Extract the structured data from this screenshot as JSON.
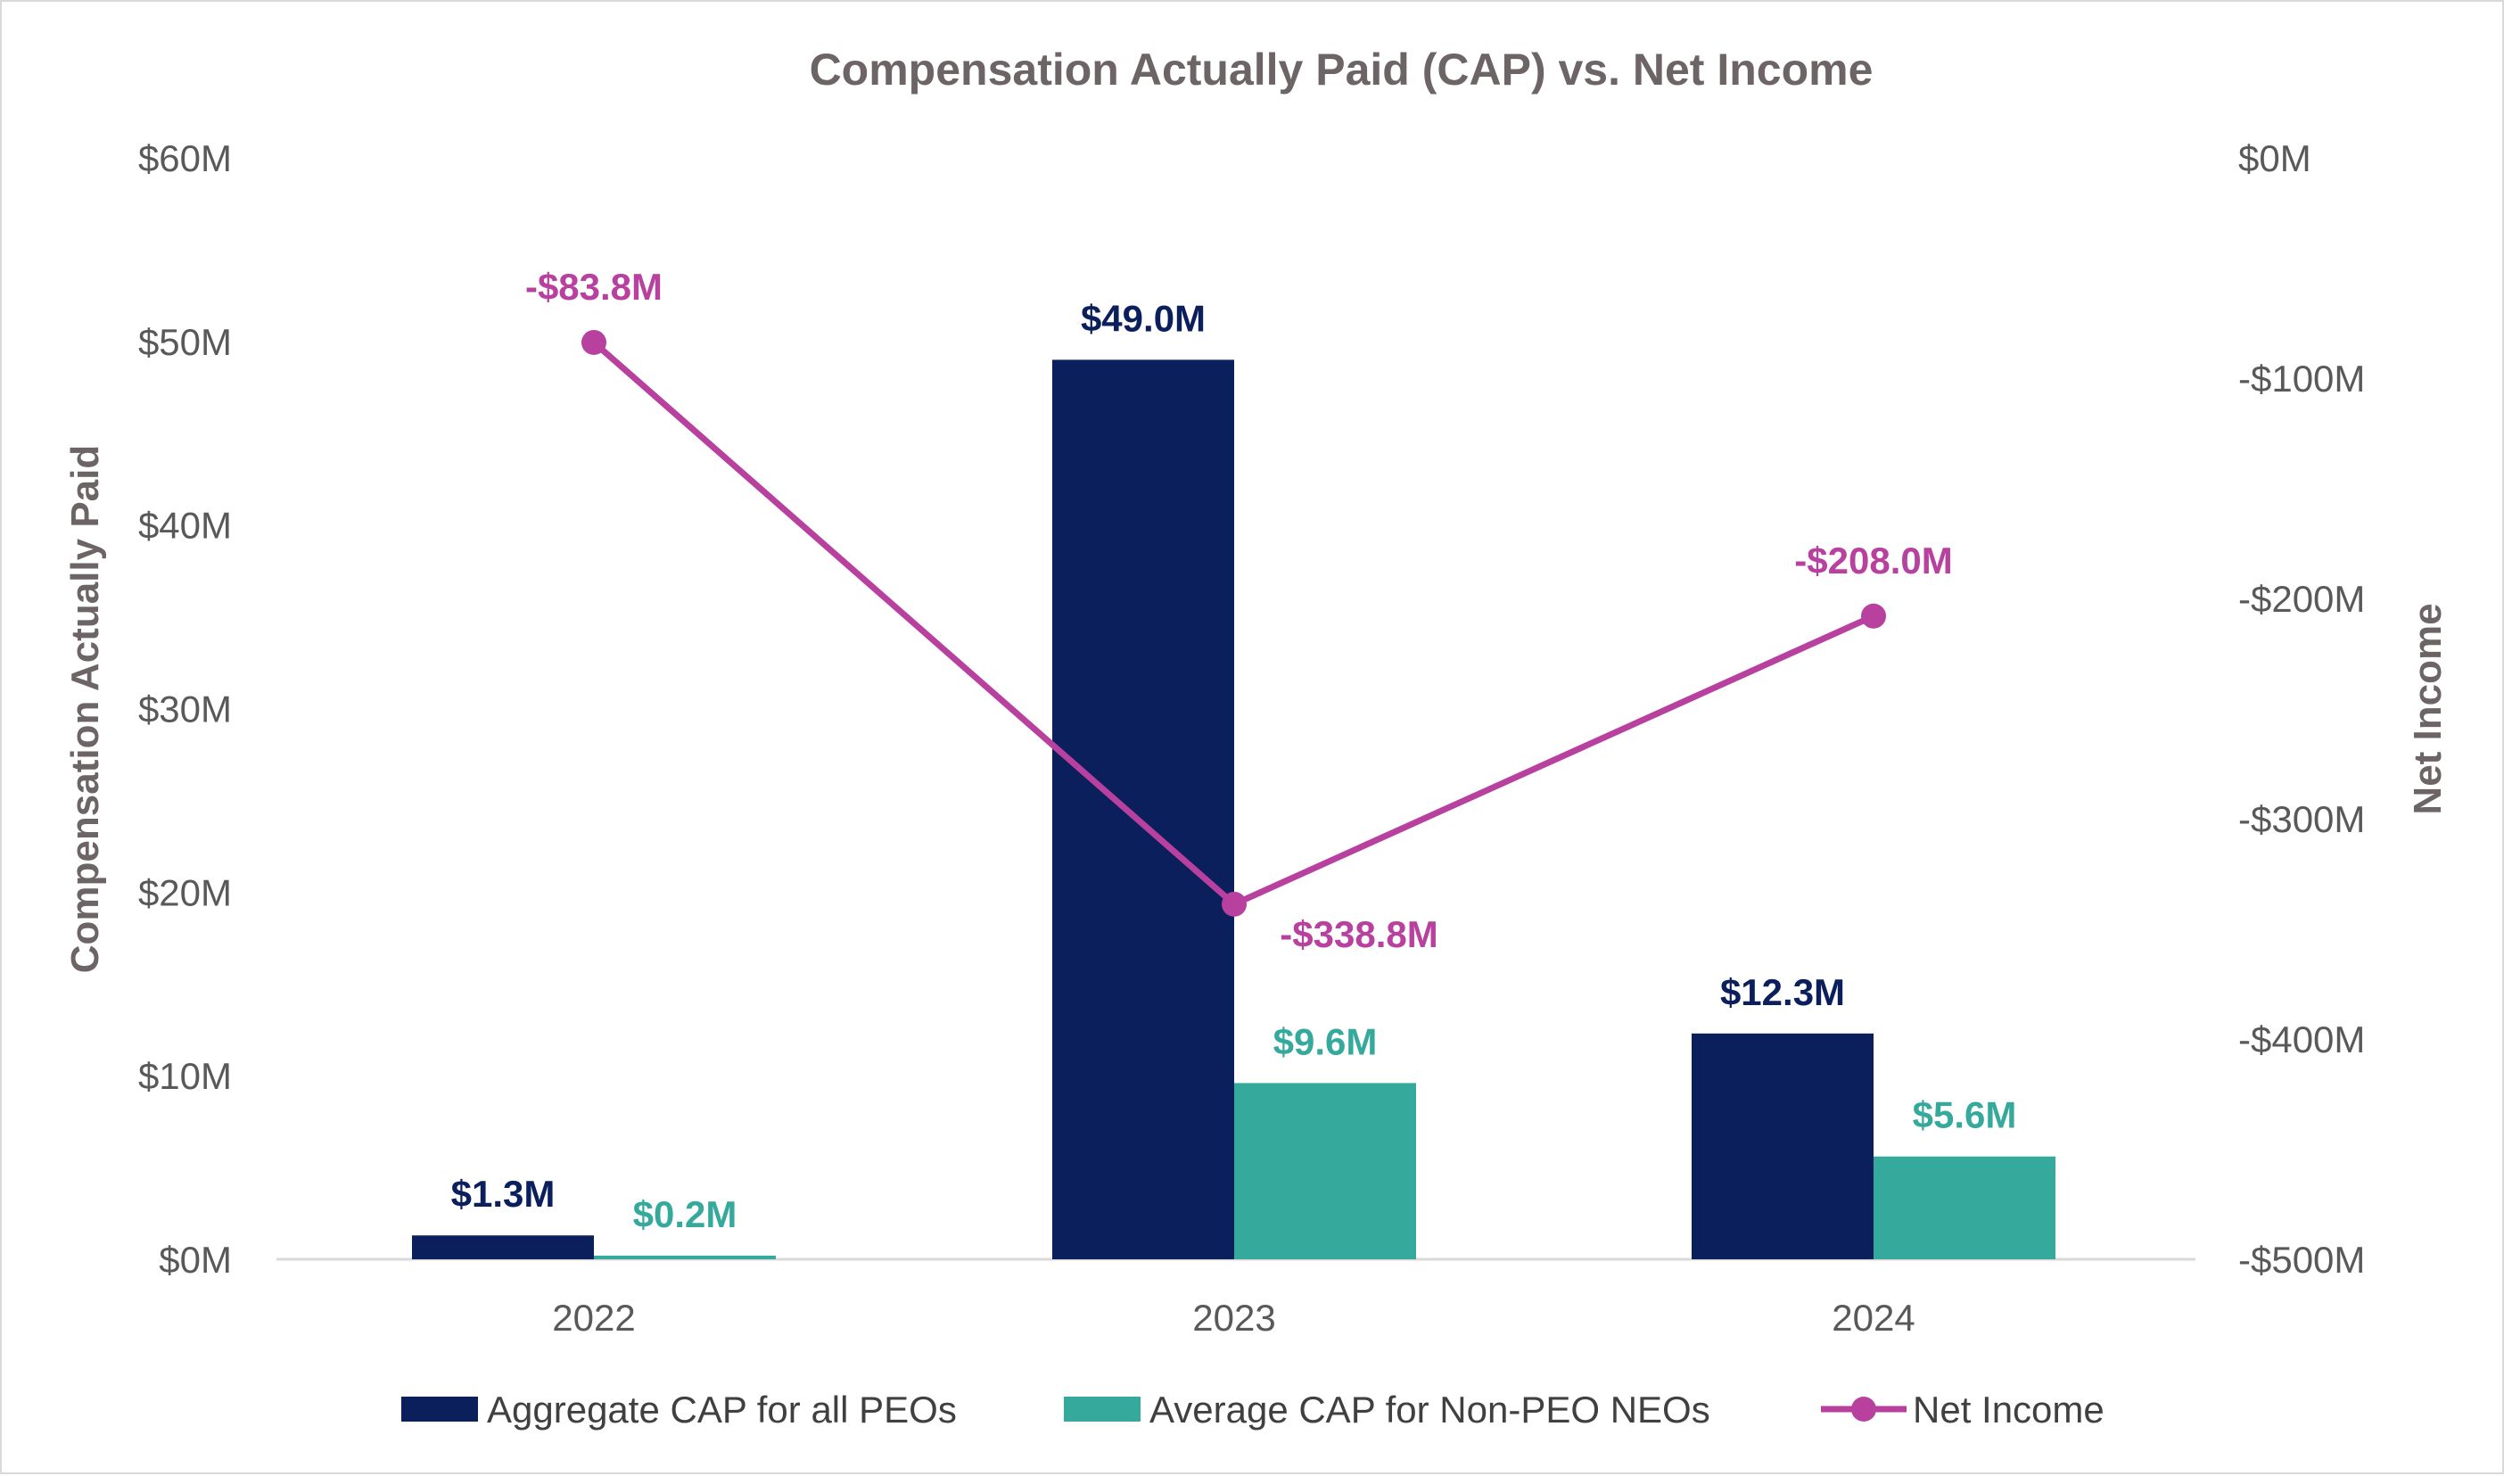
{
  "chart_data": {
    "type": "bar",
    "title": "Compensation Actually Paid (CAP) vs. Net Income",
    "categories": [
      "2022",
      "2023",
      "2024"
    ],
    "y_left": {
      "label": "Compensation Actually Paid",
      "range": [
        0,
        60
      ],
      "ticks": [
        "$0M",
        "$10M",
        "$20M",
        "$30M",
        "$40M",
        "$50M",
        "$60M"
      ]
    },
    "y_right": {
      "label": "Net Income",
      "range": [
        -500,
        0
      ],
      "ticks": [
        "-$500M",
        "-$400M",
        "-$300M",
        "-$200M",
        "-$100M",
        "$0M"
      ]
    },
    "series": [
      {
        "name": "Aggregate CAP for all PEOs",
        "type": "bar",
        "axis": "left",
        "color": "#0b1f5c",
        "values": [
          1.3,
          49.0,
          12.3
        ],
        "labels": [
          "$1.3M",
          "$49.0M",
          "$12.3M"
        ]
      },
      {
        "name": "Average CAP for Non-PEO NEOs",
        "type": "bar",
        "axis": "left",
        "color": "#35a99b",
        "values": [
          0.2,
          9.6,
          5.6
        ],
        "labels": [
          "$0.2M",
          "$9.6M",
          "$5.6M"
        ]
      },
      {
        "name": "Net Income",
        "type": "line",
        "axis": "right",
        "color": "#b8409e",
        "values": [
          -83.8,
          -338.8,
          -208.0
        ],
        "labels": [
          "-$83.8M",
          "-$338.8M",
          "-$208.0M"
        ]
      }
    ],
    "grid": false,
    "legend_position": "bottom"
  }
}
